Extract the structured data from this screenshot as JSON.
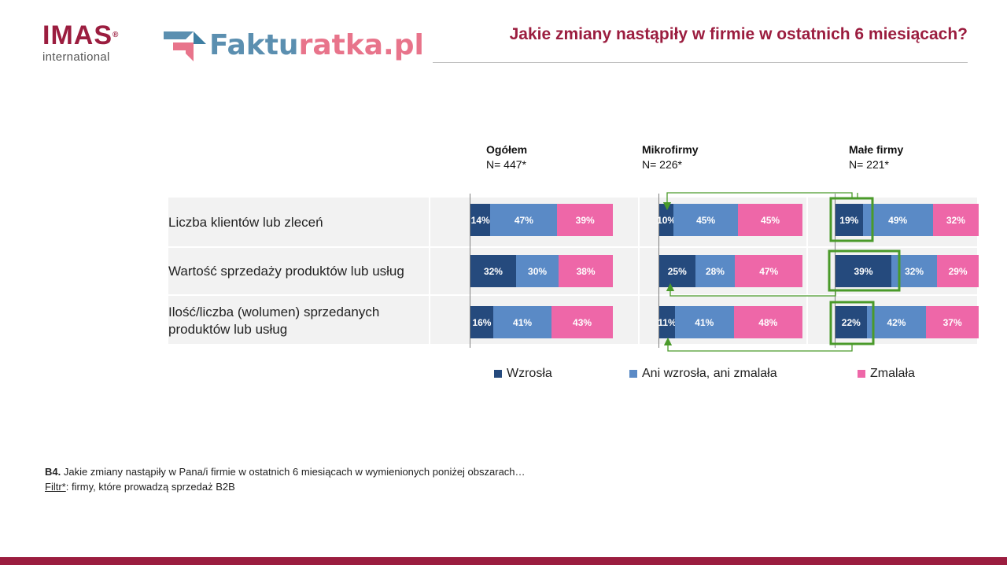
{
  "header": {
    "imas_word": "IMAS",
    "imas_reg": "®",
    "imas_sub": "international",
    "fakt_part1": "Faktu",
    "fakt_part2": "ratka.pl",
    "title": "Jakie zmiany nastąpiły w firmie w ostatnich 6 miesiącach?"
  },
  "colors": {
    "brand": "#9b1d3f",
    "wzrosla": "#254a7d",
    "ani": "#5a8ac6",
    "zmalala": "#ee67a8",
    "highlight": "#4a9a2a"
  },
  "chart_data": {
    "type": "bar",
    "stacked": "100%",
    "orientation": "horizontal",
    "categories": [
      "Liczba klientów lub zleceń",
      "Wartość sprzedaży produktów lub usług",
      "Ilość/liczba (wolumen) sprzedanych produktów lub usług"
    ],
    "groups": [
      {
        "name": "Ogółem",
        "n": "N= 447*",
        "series": [
          {
            "name": "Wzrosła",
            "values": [
              14,
              32,
              16
            ],
            "labels": [
              "14%",
              "32%",
              "16%"
            ]
          },
          {
            "name": "Ani wzrosła, ani zmalała",
            "values": [
              47,
              30,
              41
            ],
            "labels": [
              "47%",
              "30%",
              "41%"
            ]
          },
          {
            "name": "Zmalała",
            "values": [
              39,
              38,
              43
            ],
            "labels": [
              "39%",
              "38%",
              "43%"
            ]
          }
        ]
      },
      {
        "name": "Mikrofirmy",
        "n": "N= 226*",
        "series": [
          {
            "name": "Wzrosła",
            "values": [
              10,
              25,
              11
            ],
            "labels": [
              "10%",
              "25%",
              "11%"
            ]
          },
          {
            "name": "Ani wzrosła, ani zmalała",
            "values": [
              45,
              28,
              41
            ],
            "labels": [
              "45%",
              "28%",
              "41%"
            ]
          },
          {
            "name": "Zmalała",
            "values": [
              45,
              47,
              48
            ],
            "labels": [
              "45%",
              "47%",
              "48%"
            ]
          }
        ]
      },
      {
        "name": "Małe firmy",
        "n": "N= 221*",
        "series": [
          {
            "name": "Wzrosła",
            "values": [
              19,
              39,
              22
            ],
            "labels": [
              "19%",
              "39%",
              "22%"
            ]
          },
          {
            "name": "Ani wzrosła, ani zmalała",
            "values": [
              49,
              32,
              42
            ],
            "labels": [
              "49%",
              "32%",
              "42%"
            ]
          },
          {
            "name": "Zmalała",
            "values": [
              32,
              29,
              37
            ],
            "labels": [
              "32%",
              "29%",
              "37%"
            ]
          }
        ]
      }
    ],
    "legend": [
      "Wzrosła",
      "Ani wzrosła, ani zmalała",
      "Zmalała"
    ],
    "legend_position": "bottom"
  },
  "footer": {
    "q_code": "B4.",
    "q_text": " Jakie zmiany nastąpiły w Pana/i firmie w ostatnich 6 miesiącach w wymienionych poniżej obszarach…",
    "filter_label": "Filtr*",
    "filter_text": ": firmy, które prowadzą sprzedaż B2B"
  }
}
